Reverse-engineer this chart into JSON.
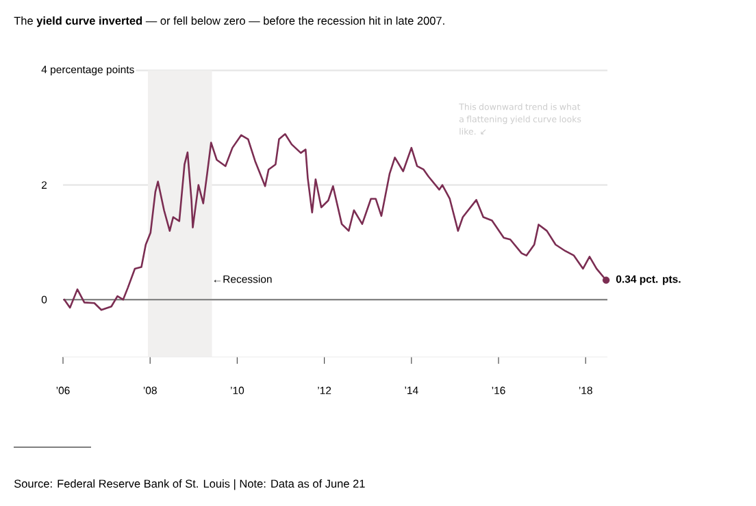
{
  "chart_data": {
    "type": "line",
    "title": "The **yield curve inverted** — or fell below zero — before the recession hit in late 2007.",
    "x": [
      2006.02,
      2006.16,
      2006.33,
      2006.49,
      2006.72,
      2006.88,
      2007.11,
      2007.25,
      2007.38,
      2007.49,
      2007.65,
      2007.8,
      2007.9,
      2008.01,
      2008.12,
      2008.18,
      2008.32,
      2008.45,
      2008.53,
      2008.67,
      2008.79,
      2008.86,
      2008.95,
      2008.98,
      2009.11,
      2009.22,
      2009.31,
      2009.4,
      2009.53,
      2009.73,
      2009.89,
      2010.09,
      2010.25,
      2010.41,
      2010.64,
      2010.72,
      2010.88,
      2010.96,
      2011.1,
      2011.25,
      2011.46,
      2011.57,
      2011.62,
      2011.72,
      2011.8,
      2011.93,
      2012.09,
      2012.2,
      2012.4,
      2012.56,
      2012.68,
      2012.87,
      2013.07,
      2013.18,
      2013.31,
      2013.5,
      2013.62,
      2013.81,
      2014.0,
      2014.13,
      2014.28,
      2014.39,
      2014.64,
      2014.71,
      2014.88,
      2015.07,
      2015.18,
      2015.49,
      2015.65,
      2015.85,
      2016.12,
      2016.27,
      2016.53,
      2016.64,
      2016.82,
      2016.92,
      2017.11,
      2017.31,
      2017.53,
      2017.73,
      2017.94,
      2018.09,
      2018.25,
      2018.47
    ],
    "series": [
      {
        "color": "#7b2d52",
        "values": [
          0.01,
          -0.14,
          0.18,
          -0.05,
          -0.06,
          -0.18,
          -0.12,
          0.06,
          0.0,
          0.21,
          0.54,
          0.57,
          0.96,
          1.17,
          1.88,
          2.06,
          1.56,
          1.2,
          1.44,
          1.37,
          2.36,
          2.57,
          1.73,
          1.26,
          2.0,
          1.68,
          2.2,
          2.74,
          2.44,
          2.33,
          2.65,
          2.87,
          2.8,
          2.42,
          1.98,
          2.27,
          2.36,
          2.8,
          2.89,
          2.71,
          2.56,
          2.62,
          2.12,
          1.52,
          2.1,
          1.61,
          1.73,
          1.98,
          1.32,
          1.2,
          1.56,
          1.32,
          1.76,
          1.76,
          1.46,
          2.2,
          2.48,
          2.24,
          2.65,
          2.33,
          2.27,
          2.15,
          1.92,
          2.0,
          1.76,
          1.2,
          1.44,
          1.74,
          1.44,
          1.38,
          1.08,
          1.05,
          0.81,
          0.77,
          0.96,
          1.31,
          1.2,
          0.96,
          0.85,
          0.77,
          0.54,
          0.75,
          0.54,
          0.34
        ]
      },
      {
        "type": "scatter",
        "marker": "circle",
        "color": "#7b2d52",
        "x": [
          2018.47
        ],
        "values": [
          0.34
        ]
      }
    ],
    "xlim": [
      2006,
      2018.5
    ],
    "ylim": [
      -1,
      4
    ],
    "xticks": [
      {
        "value": 2006,
        "label": "’06"
      },
      {
        "value": 2008,
        "label": "’08"
      },
      {
        "value": 2010,
        "label": "’10"
      },
      {
        "value": 2012,
        "label": "’12"
      },
      {
        "value": 2014,
        "label": "’14"
      },
      {
        "value": 2016,
        "label": "’16"
      },
      {
        "value": 2018,
        "label": "’18"
      }
    ],
    "yticks": [
      0,
      2,
      {
        "value": 4,
        "label": "4 percentage points"
      }
    ],
    "grid": "y",
    "ref_lines": [
      {
        "axis": "y",
        "value": 0,
        "color": "#777777"
      }
    ],
    "bands": [
      {
        "axis": "x",
        "from": 2007.95,
        "to": 2009.42,
        "label": "←Recession",
        "color": "#f1f0ef"
      }
    ],
    "annotations": [
      "This downward trend is what a flattening yield curve looks like. ↙",
      {
        "text": "0.34 pct. pts.",
        "x": 2018.47,
        "y": 0.34
      },
      "Source: Federal Reserve Bank of St. Louis | Note: Data as of June 21"
    ]
  }
}
